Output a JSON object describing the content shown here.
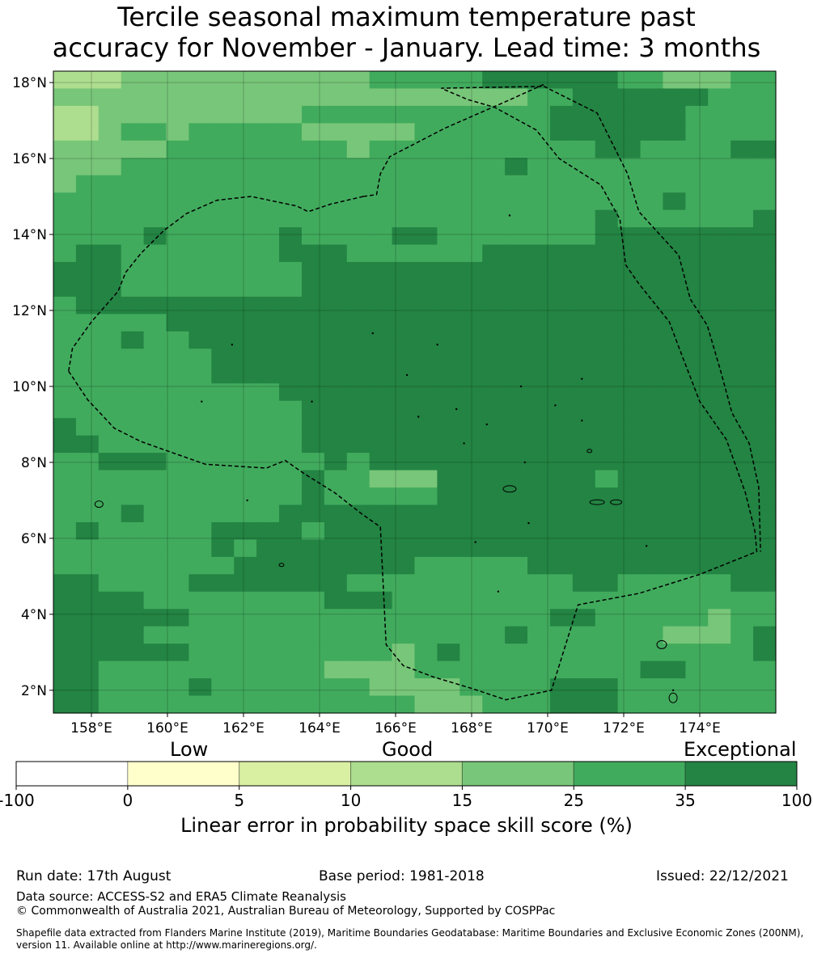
{
  "title": {
    "line1": "Tercile seasonal maximum temperature past",
    "line2": "accuracy for November - January. Lead time: 3 months"
  },
  "map": {
    "lon_range": [
      157,
      176
    ],
    "lat_range": [
      1.4,
      18.3
    ],
    "x_ticks": [
      "158°E",
      "160°E",
      "162°E",
      "164°E",
      "166°E",
      "168°E",
      "170°E",
      "172°E",
      "174°E"
    ],
    "y_ticks": [
      "18°N",
      "16°N",
      "14°N",
      "12°N",
      "10°N",
      "8°N",
      "6°N",
      "4°N",
      "2°N"
    ],
    "cell_colors": [
      "#ffffff",
      "#ffffcc",
      "#d9f0a3",
      "#addd8e",
      "#78c679",
      "#41ab5d",
      "#238443"
    ],
    "grid": [
      "33344444444444555556666665544455",
      "44444444444444444444455666666555",
      "33444444444555555555556666665555",
      "33455455555444445555556666665555",
      "44444555555554555555555566555566",
      "44455555555555555555655555555555",
      "45555555555555555555555555555555",
      "55555555555555555555555555565555",
      "55555555555555555555555565555556",
      "55556555556555566555555566666666",
      "56655555556665555556666666666666",
      "66655555555666666666666666666666",
      "66655555555666666666666666666666",
      "56666666666666666666666666666666",
      "55555666666666666666666666666666",
      "55565566666666666666666666666666",
      "55555556666666666666666666666666",
      "55555556666666666666666666666666",
      "55555555556666666666666666666666",
      "55555555555666666666666666666666",
      "65555555555666666666666666666666",
      "66555555555666666666666666666666",
      "55666555555565666666666666666666",
      "55555555555655444666666656666666",
      "55555555555655555666666666666666",
      "55565555556666666666666666666666",
      "56555556666566666666666666666666",
      "55555556566666666666666666666666",
      "55555555666666665555566666666666",
      "66555566666665555555555665555566",
      "66665555555566655555555555555555",
      "66666655555555555555556655555455",
      "66665555555555555555655555544456",
      "66666655555555545655555555555556",
      "66555555555544445555555555665555",
      "66555565555555444455556665555555",
      "66555555555555554445556665555555"
    ],
    "eez_boundary": [
      [
        157.4,
        10.4
      ],
      [
        157.9,
        9.65
      ],
      [
        158.6,
        8.9
      ],
      [
        159.3,
        8.55
      ],
      [
        160.0,
        8.3
      ],
      [
        161.0,
        7.95
      ],
      [
        161.8,
        7.9
      ],
      [
        162.6,
        7.85
      ],
      [
        163.1,
        8.05
      ],
      [
        163.6,
        7.7
      ],
      [
        164.4,
        7.2
      ],
      [
        165.1,
        6.65
      ],
      [
        165.6,
        6.3
      ],
      [
        165.75,
        3.2
      ],
      [
        166.2,
        2.65
      ],
      [
        167.0,
        2.35
      ],
      [
        168.0,
        2.05
      ],
      [
        168.9,
        1.75
      ],
      [
        170.1,
        2.0
      ],
      [
        170.8,
        4.25
      ],
      [
        172.4,
        4.55
      ],
      [
        174.0,
        5.05
      ],
      [
        175.5,
        5.65
      ],
      [
        175.45,
        6.2
      ],
      [
        175.2,
        7.2
      ],
      [
        174.7,
        8.6
      ],
      [
        174.0,
        9.6
      ],
      [
        173.5,
        10.9
      ],
      [
        173.2,
        11.7
      ],
      [
        172.4,
        12.7
      ],
      [
        172.05,
        13.2
      ],
      [
        171.9,
        14.4
      ],
      [
        171.4,
        15.3
      ],
      [
        170.3,
        16.0
      ],
      [
        169.7,
        16.75
      ],
      [
        168.6,
        17.35
      ],
      [
        167.9,
        17.55
      ],
      [
        167.2,
        17.85
      ],
      [
        169.9,
        17.9
      ],
      [
        171.3,
        17.2
      ],
      [
        172.1,
        15.6
      ],
      [
        172.4,
        14.6
      ],
      [
        173.45,
        13.45
      ],
      [
        173.75,
        12.3
      ],
      [
        174.2,
        11.6
      ],
      [
        174.55,
        10.4
      ],
      [
        174.85,
        9.3
      ],
      [
        175.3,
        8.5
      ],
      [
        175.55,
        7.35
      ],
      [
        175.6,
        5.65
      ]
    ],
    "eez_boundary_north": [
      [
        165.15,
        15.0
      ],
      [
        164.3,
        14.8
      ],
      [
        163.7,
        14.6
      ],
      [
        163.4,
        14.75
      ],
      [
        162.2,
        15.0
      ],
      [
        161.3,
        14.9
      ],
      [
        160.5,
        14.55
      ],
      [
        159.9,
        14.1
      ],
      [
        159.3,
        13.5
      ],
      [
        158.9,
        13.0
      ],
      [
        158.7,
        12.5
      ],
      [
        158.0,
        11.7
      ],
      [
        157.5,
        11.0
      ],
      [
        157.4,
        10.4
      ]
    ],
    "eez_boundary_east": [
      [
        165.15,
        15.0
      ],
      [
        165.5,
        15.05
      ],
      [
        165.6,
        15.6
      ],
      [
        165.85,
        16.05
      ],
      [
        167.3,
        16.8
      ],
      [
        168.9,
        17.5
      ],
      [
        169.9,
        17.95
      ]
    ]
  },
  "colorbar": {
    "categories": [
      "Low",
      "Good",
      "Exceptional"
    ],
    "colors": [
      "#ffffff",
      "#ffffcc",
      "#d9f0a3",
      "#addd8e",
      "#78c679",
      "#41ab5d",
      "#238443"
    ],
    "tick_labels": [
      "-100",
      "0",
      "5",
      "10",
      "15",
      "25",
      "35",
      "100"
    ],
    "title": "Linear error in probability space skill score (%)"
  },
  "footer": {
    "run_date": "Run date: 17th August",
    "base_period": "Base period: 1981-2018",
    "issued": "Issued: 22/12/2021",
    "data_source": "Data source: ACCESS-S2 and ERA5 Climate Reanalysis",
    "copyright": "© Commonwealth of Australia 2021, Australian Bureau of Meteorology, Supported by COSPPac",
    "shapefile_line1": "Shapefile data extracted from Flanders Marine Institute (2019), Maritime Boundaries Geodatabase: Maritime Boundaries and Exclusive Economic Zones (200NM),",
    "shapefile_line2": "version 11. Available online at http://www.marineregions.org/."
  }
}
